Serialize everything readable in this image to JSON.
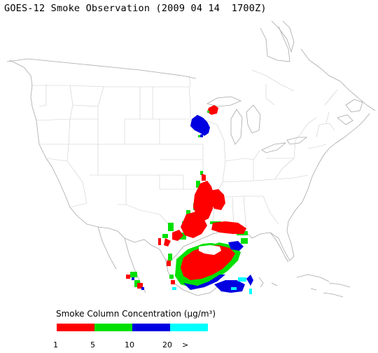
{
  "title": "GOES-12 Smoke Observation (2009 04 14  1700Z)",
  "legend": {
    "label": "Smoke Column Concentration (µg/m³)",
    "colors": [
      "#ff0000",
      "#00e000",
      "#0000e0",
      "#00ffff"
    ],
    "ticks": [
      "1",
      "5",
      "10",
      "20",
      ">"
    ]
  },
  "map_style": {
    "coast_color": "#a8a8a8",
    "border_color": "#c8c8c8"
  }
}
